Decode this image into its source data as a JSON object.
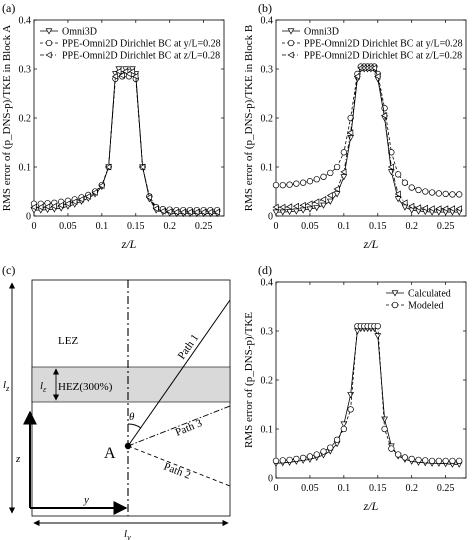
{
  "chart_data": [
    {
      "id": "a",
      "type": "line",
      "panel_label": "(a)",
      "xlabel": "z/L",
      "ylabel": "RMS error of (p_DNS-p)/TKE in Block A",
      "xlim": [
        0,
        0.28
      ],
      "ylim": [
        0,
        0.4
      ],
      "xticks": [
        0,
        0.05,
        0.1,
        0.15,
        0.2,
        0.25
      ],
      "yticks": [
        0,
        0.1,
        0.2,
        0.3,
        0.4
      ],
      "xtick_labels": [
        "0",
        "0.05",
        "0.1",
        "0.15",
        "0.2",
        "0.25"
      ],
      "ytick_labels": [
        "0",
        "0.1",
        "0.2",
        "0.3",
        "0.4"
      ],
      "legend_position": "top-left",
      "x": [
        0,
        0.01,
        0.02,
        0.03,
        0.04,
        0.05,
        0.06,
        0.07,
        0.08,
        0.09,
        0.1,
        0.11,
        0.12,
        0.125,
        0.13,
        0.135,
        0.14,
        0.145,
        0.15,
        0.16,
        0.17,
        0.18,
        0.19,
        0.2,
        0.21,
        0.22,
        0.23,
        0.24,
        0.25,
        0.26,
        0.27
      ],
      "series": [
        {
          "name": "Omni3D",
          "marker": "triangle-down",
          "values": [
            0.012,
            0.012,
            0.013,
            0.014,
            0.016,
            0.02,
            0.024,
            0.03,
            0.036,
            0.045,
            0.06,
            0.1,
            0.29,
            0.3,
            0.29,
            0.3,
            0.295,
            0.3,
            0.29,
            0.1,
            0.035,
            0.012,
            0.008,
            0.006,
            0.005,
            0.005,
            0.005,
            0.005,
            0.005,
            0.005,
            0.005
          ]
        },
        {
          "name": "PPE-Omni2D Dirichlet BC at y/L=0.28",
          "marker": "circle",
          "values": [
            0.025,
            0.025,
            0.026,
            0.027,
            0.029,
            0.031,
            0.034,
            0.038,
            0.043,
            0.05,
            0.063,
            0.1,
            0.28,
            0.29,
            0.285,
            0.29,
            0.285,
            0.29,
            0.28,
            0.1,
            0.04,
            0.018,
            0.014,
            0.013,
            0.012,
            0.012,
            0.012,
            0.012,
            0.012,
            0.012,
            0.012
          ]
        },
        {
          "name": "PPE-Omni2D Dirichlet BC at z/L=0.28",
          "marker": "triangle-left",
          "values": [
            0.018,
            0.018,
            0.019,
            0.02,
            0.022,
            0.025,
            0.029,
            0.034,
            0.04,
            0.048,
            0.062,
            0.1,
            0.285,
            0.295,
            0.287,
            0.295,
            0.29,
            0.295,
            0.285,
            0.1,
            0.038,
            0.015,
            0.01,
            0.009,
            0.008,
            0.008,
            0.008,
            0.008,
            0.008,
            0.008,
            0.008
          ]
        }
      ]
    },
    {
      "id": "b",
      "type": "line",
      "panel_label": "(b)",
      "xlabel": "z/L",
      "ylabel": "RMS error of (p_DNS-p)/TKE in Block B",
      "xlim": [
        0,
        0.28
      ],
      "ylim": [
        0,
        0.4
      ],
      "xticks": [
        0,
        0.05,
        0.1,
        0.15,
        0.2,
        0.25
      ],
      "yticks": [
        0,
        0.1,
        0.2,
        0.3,
        0.4
      ],
      "xtick_labels": [
        "0",
        "0.05",
        "0.1",
        "0.15",
        "0.2",
        "0.25"
      ],
      "ytick_labels": [
        "0",
        "0.1",
        "0.2",
        "0.3",
        "0.4"
      ],
      "legend_position": "top-left",
      "x": [
        0,
        0.01,
        0.02,
        0.03,
        0.04,
        0.05,
        0.06,
        0.07,
        0.08,
        0.09,
        0.1,
        0.11,
        0.12,
        0.125,
        0.13,
        0.135,
        0.14,
        0.145,
        0.15,
        0.16,
        0.17,
        0.18,
        0.19,
        0.2,
        0.21,
        0.22,
        0.23,
        0.24,
        0.25,
        0.26,
        0.27
      ],
      "series": [
        {
          "name": "Omni3D",
          "marker": "triangle-down",
          "values": [
            0.008,
            0.008,
            0.009,
            0.01,
            0.012,
            0.014,
            0.017,
            0.022,
            0.03,
            0.045,
            0.08,
            0.16,
            0.28,
            0.3,
            0.3,
            0.3,
            0.3,
            0.3,
            0.28,
            0.2,
            0.09,
            0.035,
            0.018,
            0.012,
            0.01,
            0.009,
            0.008,
            0.008,
            0.008,
            0.008,
            0.008
          ]
        },
        {
          "name": "PPE-Omni2D Dirichlet BC at y/L=0.28",
          "marker": "circle",
          "values": [
            0.063,
            0.063,
            0.064,
            0.066,
            0.068,
            0.071,
            0.075,
            0.08,
            0.088,
            0.1,
            0.13,
            0.2,
            0.29,
            0.305,
            0.305,
            0.305,
            0.305,
            0.305,
            0.29,
            0.22,
            0.13,
            0.085,
            0.068,
            0.058,
            0.053,
            0.05,
            0.048,
            0.046,
            0.045,
            0.044,
            0.044
          ]
        },
        {
          "name": "PPE-Omni2D Dirichlet BC at z/L=0.28",
          "marker": "triangle-left",
          "values": [
            0.018,
            0.018,
            0.019,
            0.02,
            0.022,
            0.025,
            0.029,
            0.034,
            0.042,
            0.055,
            0.09,
            0.17,
            0.285,
            0.302,
            0.302,
            0.302,
            0.302,
            0.302,
            0.285,
            0.205,
            0.1,
            0.045,
            0.027,
            0.02,
            0.017,
            0.016,
            0.015,
            0.015,
            0.015,
            0.015,
            0.015
          ]
        }
      ]
    },
    {
      "id": "d",
      "type": "line",
      "panel_label": "(d)",
      "xlabel": "z/L",
      "ylabel": "RMS error of (p_DNS-p)/TKE",
      "xlim": [
        0,
        0.28
      ],
      "ylim": [
        0,
        0.4
      ],
      "xticks": [
        0,
        0.05,
        0.1,
        0.15,
        0.2,
        0.25
      ],
      "yticks": [
        0,
        0.1,
        0.2,
        0.3,
        0.4
      ],
      "xtick_labels": [
        "0",
        "0.05",
        "0.1",
        "0.15",
        "0.2",
        "0.25"
      ],
      "ytick_labels": [
        "0",
        "0.1",
        "0.2",
        "0.3",
        "0.4"
      ],
      "legend_position": "top-right",
      "x": [
        0,
        0.01,
        0.02,
        0.03,
        0.04,
        0.05,
        0.06,
        0.07,
        0.08,
        0.09,
        0.1,
        0.11,
        0.12,
        0.125,
        0.13,
        0.135,
        0.14,
        0.145,
        0.15,
        0.16,
        0.17,
        0.18,
        0.19,
        0.2,
        0.21,
        0.22,
        0.23,
        0.24,
        0.25,
        0.26,
        0.27
      ],
      "series": [
        {
          "name": "Calculated",
          "marker": "triangle-down",
          "values": [
            0.03,
            0.031,
            0.032,
            0.034,
            0.036,
            0.038,
            0.042,
            0.047,
            0.055,
            0.07,
            0.11,
            0.17,
            0.3,
            0.305,
            0.305,
            0.305,
            0.305,
            0.305,
            0.29,
            0.12,
            0.065,
            0.045,
            0.038,
            0.034,
            0.032,
            0.031,
            0.03,
            0.03,
            0.029,
            0.028,
            0.028
          ]
        },
        {
          "name": "Modeled",
          "marker": "circle",
          "values": [
            0.035,
            0.036,
            0.037,
            0.039,
            0.041,
            0.044,
            0.048,
            0.054,
            0.062,
            0.078,
            0.1,
            0.14,
            0.31,
            0.31,
            0.31,
            0.31,
            0.31,
            0.31,
            0.31,
            0.1,
            0.06,
            0.048,
            0.042,
            0.039,
            0.037,
            0.036,
            0.035,
            0.035,
            0.035,
            0.035,
            0.035
          ]
        }
      ]
    }
  ],
  "schematic": {
    "panel_label": "(c)",
    "lez_label": "LEZ",
    "hez_label": "HEZ(300%)",
    "l_epsilon_label": "l",
    "l_epsilon_sub": "ε",
    "lz_label": "l",
    "lz_sub": "z",
    "ly_label": "l",
    "ly_sub": "y",
    "theta_label": "θ",
    "point_label": "A",
    "z_axis_label": "z",
    "y_axis_label": "y",
    "path1_label": "Path 1",
    "path2_label": "Path 2",
    "path3_label": "Path 3",
    "hez_fill": "#d9d9d9"
  }
}
